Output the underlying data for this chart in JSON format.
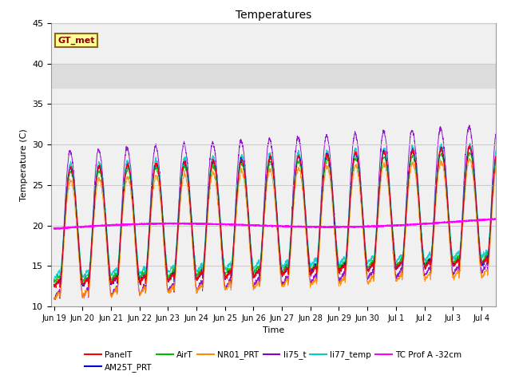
{
  "title": "Temperatures",
  "xlabel": "Time",
  "ylabel": "Temperature (C)",
  "ylim": [
    10,
    45
  ],
  "annotation_text": "GT_met",
  "annotation_box_facecolor": "#FFFF99",
  "annotation_box_edgecolor": "#8B6914",
  "shaded_band": [
    37,
    40
  ],
  "shaded_color": "#DCDCDC",
  "series_colors": {
    "PanelT": "#FF0000",
    "AM25T_PRT": "#0000CC",
    "AirT": "#00BB00",
    "NR01_PRT": "#FF8C00",
    "li75_t": "#8800CC",
    "li77_temp": "#00CCCC",
    "TC Prof A -32cm": "#FF00FF"
  },
  "tick_labels": [
    "Jun 19",
    "Jun 20",
    "Jun 21",
    "Jun 22",
    "Jun 23",
    "Jun 24",
    "Jun 25",
    "Jun 26",
    "Jun 27",
    "Jun 28",
    "Jun 29",
    "Jun 30",
    "Jul 1",
    "Jul 2",
    "Jul 3",
    "Jul 4"
  ],
  "n_days": 15.5,
  "samples_per_day": 144
}
